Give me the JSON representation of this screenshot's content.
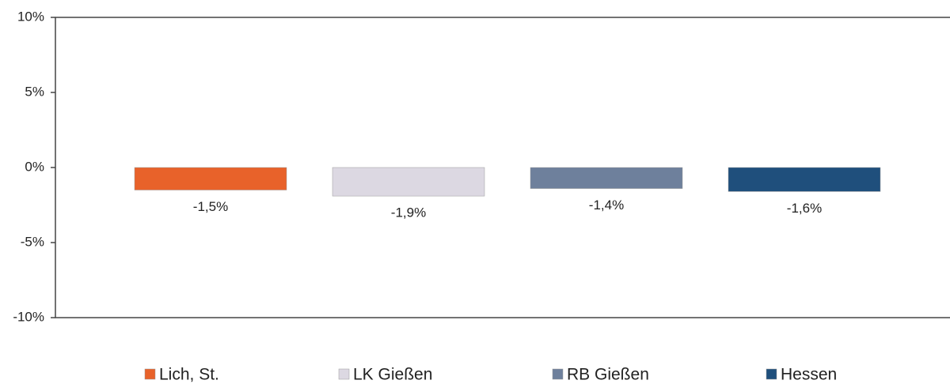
{
  "chart_data": {
    "type": "bar",
    "categories": [
      null
    ],
    "series": [
      {
        "name": "Lich, St.",
        "color": "#e8622a",
        "values": [
          -1.5
        ],
        "value_labels": [
          "-1,5%"
        ]
      },
      {
        "name": "LK Gießen",
        "color": "#dcd8e2",
        "values": [
          -1.9
        ],
        "value_labels": [
          "-1,9%"
        ]
      },
      {
        "name": "RB Gießen",
        "color": "#6e809c",
        "values": [
          -1.4
        ],
        "value_labels": [
          "-1,4%"
        ]
      },
      {
        "name": "Hessen",
        "color": "#1f4f7c",
        "values": [
          -1.6
        ],
        "value_labels": [
          "-1,6%"
        ]
      }
    ],
    "ylim": [
      -10,
      10
    ],
    "yticks": [
      {
        "value": -10,
        "label": "-10%"
      },
      {
        "value": -5,
        "label": "-5%"
      },
      {
        "value": 0,
        "label": "0%"
      },
      {
        "value": 5,
        "label": "5%"
      },
      {
        "value": 10,
        "label": "10%"
      }
    ],
    "legend": "bottom"
  }
}
